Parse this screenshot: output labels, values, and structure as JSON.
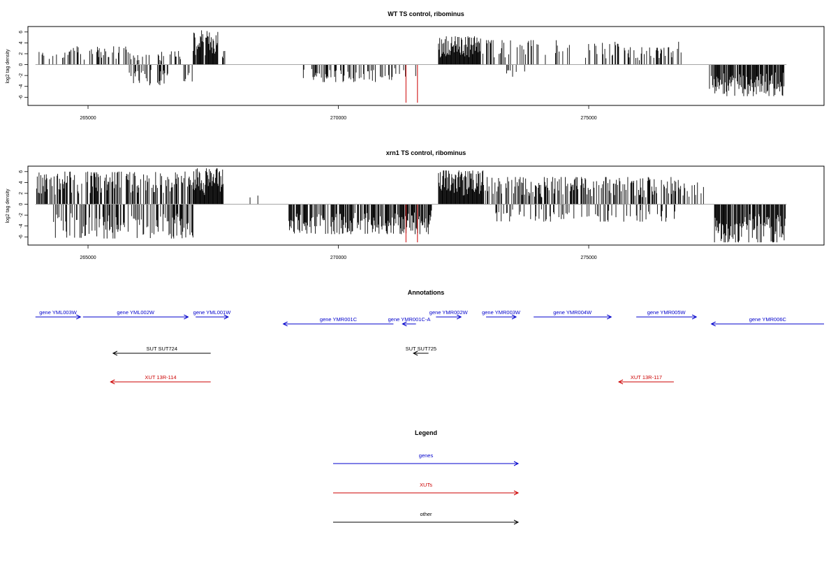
{
  "chart_data": [
    {
      "type": "bar",
      "title": "WT TS control, ribominus",
      "ylabel": "log2 tag density",
      "xlim": [
        263800,
        279700
      ],
      "ylim": [
        -7.5,
        7
      ],
      "yticks": [
        -6,
        -4,
        -2,
        0,
        2,
        4,
        6
      ],
      "xticks": [
        265000,
        270000,
        275000
      ],
      "xtick_labels": [
        "265000",
        "270000",
        "275000"
      ],
      "highlight_color": "#cc0000",
      "highlights": [
        {
          "x": 271350,
          "value": -7
        },
        {
          "x": 271580,
          "value": -7
        }
      ],
      "regions": [
        {
          "start": 263950,
          "end": 264600,
          "sign": 1,
          "max": 2.5,
          "density": 0.25
        },
        {
          "start": 264600,
          "end": 265800,
          "sign": 1,
          "max": 3.5,
          "density": 0.35
        },
        {
          "start": 265800,
          "end": 266600,
          "sign": -1,
          "max": 3.8,
          "density": 0.5
        },
        {
          "start": 265800,
          "end": 266900,
          "sign": 1,
          "max": 2.5,
          "density": 0.3
        },
        {
          "start": 266900,
          "end": 267100,
          "sign": -1,
          "max": 3.5,
          "density": 0.4
        },
        {
          "start": 267100,
          "end": 267600,
          "sign": 1,
          "max": 6.3,
          "density": 0.95
        },
        {
          "start": 267600,
          "end": 267750,
          "sign": 1,
          "max": 3.0,
          "density": 0.5
        },
        {
          "start": 269300,
          "end": 271100,
          "sign": -1,
          "max": 3.2,
          "density": 0.35
        },
        {
          "start": 271100,
          "end": 271700,
          "sign": -1,
          "max": 2.2,
          "density": 0.2
        },
        {
          "start": 272000,
          "end": 272850,
          "sign": 1,
          "max": 5.2,
          "density": 1.0
        },
        {
          "start": 272850,
          "end": 275600,
          "sign": 1,
          "max": 4.5,
          "density": 0.25
        },
        {
          "start": 273300,
          "end": 273800,
          "sign": -1,
          "max": 2.5,
          "density": 0.15
        },
        {
          "start": 275700,
          "end": 276700,
          "sign": 1,
          "max": 3.2,
          "density": 0.3
        },
        {
          "start": 276700,
          "end": 277000,
          "sign": 1,
          "max": 4.2,
          "density": 0.15
        },
        {
          "start": 277400,
          "end": 278900,
          "sign": -1,
          "max": 5.8,
          "density": 0.85
        }
      ]
    },
    {
      "type": "bar",
      "title": "xrn1 TS control, ribominus",
      "ylabel": "log2 tag density",
      "xlim": [
        263800,
        279700
      ],
      "ylim": [
        -7.5,
        7
      ],
      "yticks": [
        -6,
        -4,
        -2,
        0,
        2,
        4,
        6
      ],
      "xticks": [
        265000,
        270000,
        275000
      ],
      "xtick_labels": [
        "265000",
        "270000",
        "275000"
      ],
      "highlight_color": "#cc0000",
      "highlights": [
        {
          "x": 271350,
          "value": -7
        },
        {
          "x": 271580,
          "value": -7
        }
      ],
      "regions": [
        {
          "start": 263950,
          "end": 267100,
          "sign": 1,
          "max": 6.0,
          "density": 0.55
        },
        {
          "start": 264300,
          "end": 267100,
          "sign": -1,
          "max": 6.3,
          "density": 0.5
        },
        {
          "start": 267100,
          "end": 267700,
          "sign": 1,
          "max": 6.6,
          "density": 1.0
        },
        {
          "start": 268200,
          "end": 268400,
          "sign": 1,
          "max": 2.0,
          "density": 0.05
        },
        {
          "start": 269000,
          "end": 271800,
          "sign": -1,
          "max": 5.5,
          "density": 0.7
        },
        {
          "start": 271800,
          "end": 271900,
          "sign": -1,
          "max": 4.5,
          "density": 0.3
        },
        {
          "start": 272000,
          "end": 272900,
          "sign": 1,
          "max": 6.2,
          "density": 1.0
        },
        {
          "start": 272900,
          "end": 276800,
          "sign": 1,
          "max": 5.0,
          "density": 0.45
        },
        {
          "start": 273000,
          "end": 276800,
          "sign": -1,
          "max": 3.2,
          "density": 0.2
        },
        {
          "start": 276800,
          "end": 277300,
          "sign": 1,
          "max": 4.0,
          "density": 0.4
        },
        {
          "start": 277500,
          "end": 278950,
          "sign": -1,
          "max": 7.0,
          "density": 0.9
        }
      ]
    }
  ],
  "annotations": {
    "title": "Annotations",
    "xlim": [
      263800,
      279700
    ],
    "features": [
      {
        "label": "gene YML003W",
        "start": 263950,
        "end": 264850,
        "direction": "right",
        "row": 0,
        "color": "#0000cc"
      },
      {
        "label": "gene YML002W",
        "start": 264900,
        "end": 267000,
        "direction": "right",
        "row": 0,
        "color": "#0000cc"
      },
      {
        "label": "gene YML001W",
        "start": 267150,
        "end": 267800,
        "direction": "right",
        "row": 0,
        "color": "#0000cc"
      },
      {
        "label": "gene YMR001C",
        "start": 268900,
        "end": 271100,
        "direction": "left",
        "row": 1,
        "color": "#0000cc"
      },
      {
        "label": "gene YMR001C-A",
        "start": 271280,
        "end": 271550,
        "direction": "left",
        "row": 1,
        "color": "#0000cc"
      },
      {
        "label": "gene YMR002W",
        "start": 271950,
        "end": 272450,
        "direction": "right",
        "row": 0,
        "color": "#0000cc"
      },
      {
        "label": "gene YMR003W",
        "start": 272950,
        "end": 273550,
        "direction": "right",
        "row": 0,
        "color": "#0000cc"
      },
      {
        "label": "gene YMR004W",
        "start": 273900,
        "end": 275450,
        "direction": "right",
        "row": 0,
        "color": "#0000cc"
      },
      {
        "label": "gene YMR005W",
        "start": 275950,
        "end": 277150,
        "direction": "right",
        "row": 0,
        "color": "#0000cc"
      },
      {
        "label": "gene YMR006C",
        "start": 277450,
        "end": 279700,
        "direction": "left",
        "row": 1,
        "color": "#0000cc"
      },
      {
        "label": "SUT SUT724",
        "start": 265500,
        "end": 267450,
        "direction": "left",
        "row": 2,
        "color": "#000000"
      },
      {
        "label": "SUT SUT725",
        "start": 271500,
        "end": 271800,
        "direction": "left",
        "row": 2,
        "color": "#000000"
      },
      {
        "label": "XUT 13R-114",
        "start": 265450,
        "end": 267450,
        "direction": "left",
        "row": 3,
        "color": "#cc0000"
      },
      {
        "label": "XUT 13R-117",
        "start": 275600,
        "end": 276700,
        "direction": "left",
        "row": 3,
        "color": "#cc0000"
      }
    ]
  },
  "legend": {
    "title": "Legend",
    "items": [
      {
        "label": "genes",
        "color": "#0000cc"
      },
      {
        "label": "XUTs",
        "color": "#cc0000"
      },
      {
        "label": "other",
        "color": "#000000"
      }
    ]
  }
}
